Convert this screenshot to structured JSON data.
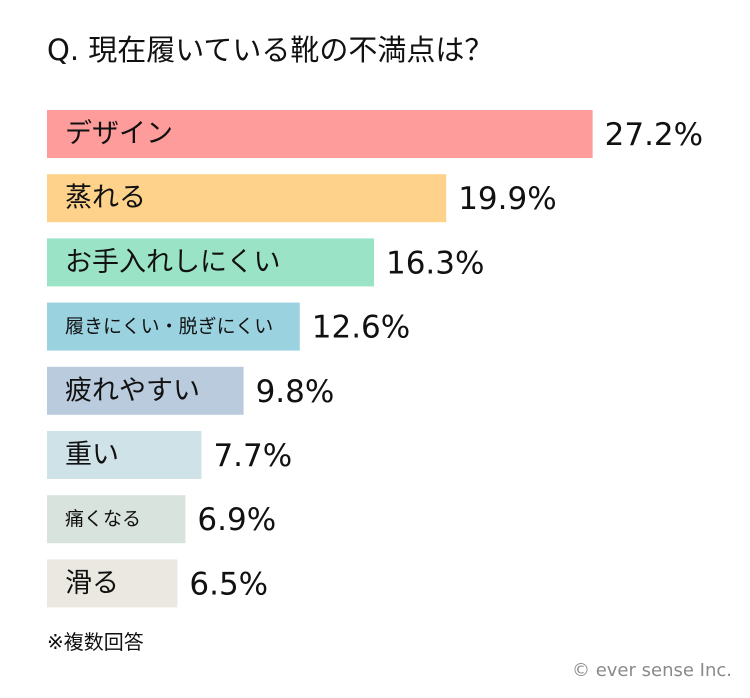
{
  "title": "Q. 現在履いている靴の不満点は？",
  "footnote": "※複数回答",
  "credit": "© ever sense Inc.",
  "chart_data": {
    "type": "bar",
    "orientation": "horizontal",
    "title": "Q. 現在履いている靴の不満点は？",
    "unit": "%",
    "categories": [
      "デザイン",
      "蒸れる",
      "お手入れしにくい",
      "履きにくい・脱ぎにくい",
      "疲れやすい",
      "重い",
      "痛くなる",
      "滑る"
    ],
    "values": [
      27.2,
      19.9,
      16.3,
      12.6,
      9.8,
      7.7,
      6.9,
      6.5
    ],
    "value_labels": [
      "27.2%",
      "19.9%",
      "16.3%",
      "12.6%",
      "9.8%",
      "7.7%",
      "6.9%",
      "6.5%"
    ],
    "colors": [
      "#fe9b9b",
      "#fed28a",
      "#9be3c7",
      "#9bd2e0",
      "#bacbde",
      "#cfe2e8",
      "#d7e3dc",
      "#eae8e0"
    ],
    "grid": false,
    "legend": "none"
  }
}
